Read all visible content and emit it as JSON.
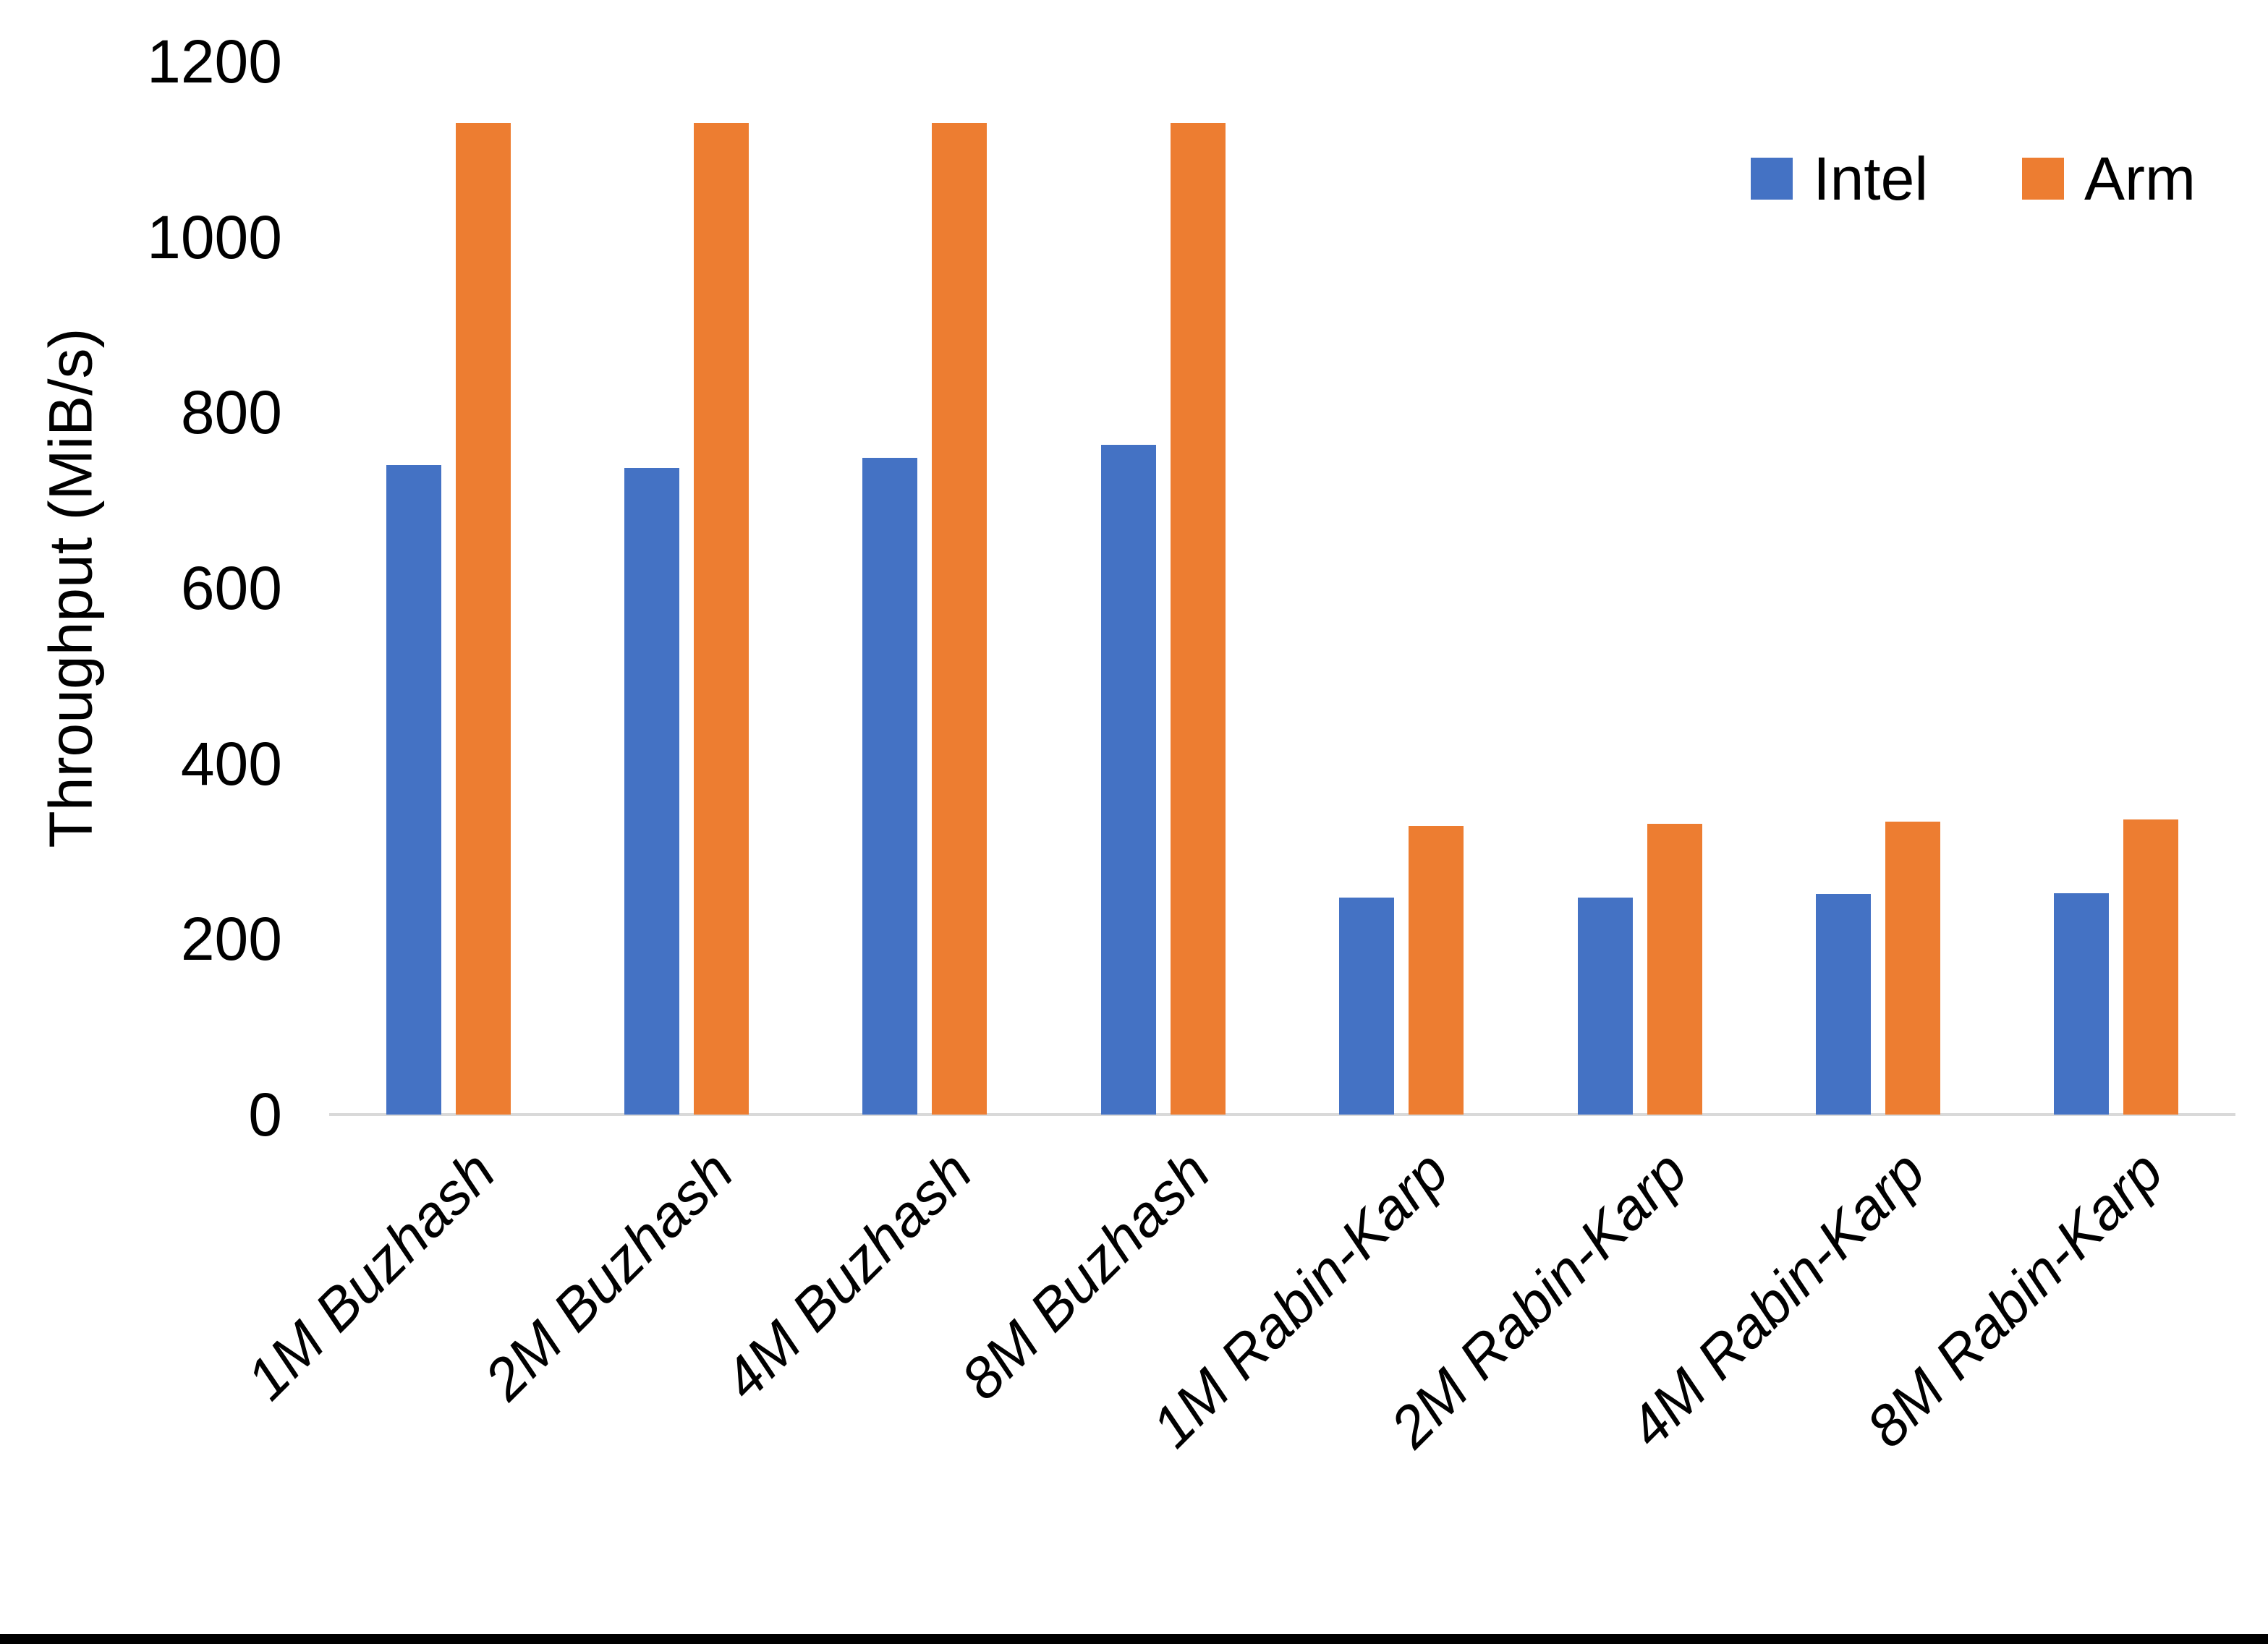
{
  "chart_data": {
    "type": "bar",
    "title": "",
    "xlabel": "",
    "ylabel": "Throughput (MiB/s)",
    "ylim": [
      0,
      1200
    ],
    "yticks": [
      0,
      200,
      400,
      600,
      800,
      1000,
      1200
    ],
    "grid": false,
    "legend_position": "top-right",
    "categories": [
      "1M Buzhash",
      "2M Buzhash",
      "4M Buzhash",
      "8M Buzhash",
      "1M Rabin-Karp",
      "2M Rabin-Karp",
      "4M Rabin-Karp",
      "8M Rabin-Karp"
    ],
    "series": [
      {
        "name": "Intel",
        "color": "#4472C4",
        "values": [
          740,
          737,
          748,
          763,
          247,
          247,
          251,
          252
        ]
      },
      {
        "name": "Arm",
        "color": "#ED7D31",
        "values": [
          1130,
          1130,
          1130,
          1130,
          329,
          331,
          334,
          336
        ]
      }
    ]
  },
  "colors": {
    "background": "#FFFFFF",
    "axis_line": "#D9D9D9",
    "text": "#000000",
    "bottom_border": "#000000"
  }
}
